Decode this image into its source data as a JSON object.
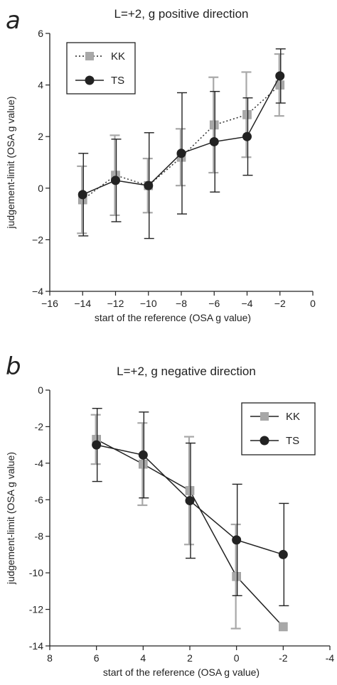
{
  "chart_data": [
    {
      "panel_label": "a",
      "type": "line",
      "title": "L=+2,  g positive direction",
      "xlabel": "start of the reference (OSA g value)",
      "ylabel": "judgement-limit (OSA g value)",
      "xlim": [
        -16,
        0
      ],
      "ylim": [
        -4,
        6
      ],
      "xticks": [
        -16,
        -14,
        -12,
        -10,
        -8,
        -6,
        -4,
        -2,
        0
      ],
      "xtick_labels": [
        "−16",
        "−14",
        "−12",
        "−10",
        "−8",
        "−6",
        "−4",
        "−2",
        "0"
      ],
      "yticks": [
        -4,
        -2,
        0,
        2,
        4,
        6
      ],
      "ytick_labels": [
        "−4",
        "−2",
        "0",
        "2",
        "4",
        "6"
      ],
      "legend_position": "top-left",
      "x": [
        -14,
        -12,
        -10,
        -8,
        -6,
        -4,
        -2
      ],
      "series": [
        {
          "name": "KK",
          "marker": "square",
          "line": "dotted",
          "color": "#a8a8a8",
          "values": [
            -0.45,
            0.5,
            0.1,
            1.2,
            2.45,
            2.85,
            4.0
          ],
          "error": [
            1.3,
            1.55,
            1.05,
            1.1,
            1.85,
            1.65,
            1.2
          ]
        },
        {
          "name": "TS",
          "marker": "circle",
          "line": "solid",
          "color": "#222222",
          "values": [
            -0.25,
            0.3,
            0.1,
            1.35,
            1.8,
            2.0,
            4.35
          ],
          "error": [
            1.6,
            1.6,
            2.05,
            2.35,
            1.95,
            1.5,
            1.05
          ]
        }
      ]
    },
    {
      "panel_label": "b",
      "type": "line",
      "title": "L=+2,  g negative direction",
      "xlabel": "start of the reference (OSA g value)",
      "ylabel": "judgement-limit (OSA g value)",
      "xlim": [
        8,
        -4
      ],
      "ylim": [
        -14,
        0
      ],
      "xticks": [
        8,
        6,
        4,
        2,
        0,
        -2,
        -4
      ],
      "xtick_labels": [
        "8",
        "6",
        "4",
        "2",
        "0",
        "-2",
        "-4"
      ],
      "yticks": [
        -14,
        -12,
        -10,
        -8,
        -6,
        -4,
        -2,
        0
      ],
      "ytick_labels": [
        "-14",
        "-12",
        "-10",
        "-8",
        "-6",
        "-4",
        "-2",
        "0"
      ],
      "legend_position": "top-right",
      "x": [
        6,
        4,
        2,
        0,
        -2
      ],
      "series": [
        {
          "name": "KK",
          "marker": "square",
          "line": "solid",
          "color": "#a8a8a8",
          "values": [
            -2.7,
            -4.05,
            -5.5,
            -10.2,
            -12.95
          ],
          "error": [
            1.35,
            2.25,
            2.95,
            2.85,
            0
          ]
        },
        {
          "name": "TS",
          "marker": "circle",
          "line": "solid",
          "color": "#222222",
          "values": [
            -3.0,
            -3.55,
            -6.05,
            -8.2,
            -9.0
          ],
          "error": [
            2.0,
            2.35,
            3.15,
            3.05,
            2.8
          ]
        }
      ]
    }
  ]
}
